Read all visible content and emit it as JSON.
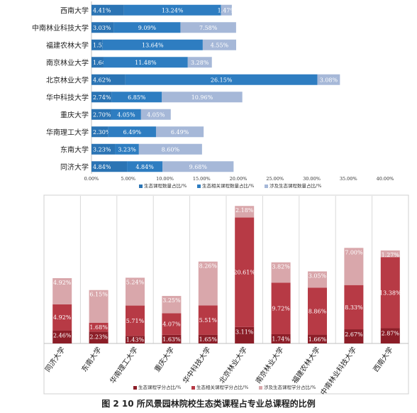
{
  "caption": "图 2   10 所风景园林院校生态类课程占专业总课程的比例",
  "chart_data": [
    {
      "type": "bar",
      "orientation": "horizontal",
      "stacked": true,
      "categories": [
        "西南大学",
        "中南林业科技大学",
        "福建农林大学",
        "南京林业大学",
        "北京林业大学",
        "华中科技大学",
        "重庆大学",
        "华南理工大学",
        "东南大学",
        "同济大学"
      ],
      "series": [
        {
          "name": "生态课程数量占比/%",
          "color": "#2b74b4",
          "values": [
            4.41,
            3.03,
            1.52,
            1.64,
            4.62,
            2.74,
            2.7,
            2.3,
            3.23,
            4.84
          ],
          "labels": [
            "4.41%",
            "3.03%",
            "1.52%",
            "1.64%",
            "4.62%",
            "2.74%",
            "2.70%",
            "2.30%",
            "3.23%",
            "4.84%"
          ]
        },
        {
          "name": "生态相关课程数量占比/%",
          "color": "#2e7dc1",
          "values": [
            13.24,
            9.09,
            13.64,
            11.48,
            26.15,
            6.85,
            4.05,
            6.49,
            3.23,
            4.84
          ],
          "labels": [
            "13.24%",
            "9.09%",
            "13.64%",
            "11.48%",
            "26.15%",
            "6.85%",
            "4.05%",
            "6.49%",
            "3.23%",
            "4.84%"
          ]
        },
        {
          "name": "涉及生态课程数量占比/%",
          "color": "#a6b8d8",
          "values": [
            1.47,
            7.58,
            4.55,
            3.28,
            3.08,
            10.96,
            4.05,
            6.49,
            8.6,
            9.68
          ],
          "labels": [
            "1.47%",
            "7.58%",
            "4.55%",
            "3.28%",
            "3.08%",
            "10.96%",
            "4.05%",
            "6.49%",
            "8.60%",
            "9.68%"
          ]
        }
      ],
      "xlim": [
        0,
        40
      ],
      "xticks": [
        "0.00%",
        "5.00%",
        "10.00%",
        "15.00%",
        "20.00%",
        "25.00%",
        "30.00%",
        "35.00%",
        "40.00%"
      ],
      "legend": "bottom"
    },
    {
      "type": "bar",
      "orientation": "vertical",
      "stacked": true,
      "categories": [
        "同济大学",
        "东南大学",
        "华南理工大学",
        "重庆大学",
        "华中科技大学",
        "北京林业大学",
        "南京林业大学",
        "福建农林大学",
        "中南林业科技大学",
        "西南大学"
      ],
      "series": [
        {
          "name": "生态课程学分占比/%",
          "color": "#8c1e28",
          "values": [
            2.46,
            2.23,
            1.43,
            1.63,
            1.65,
            3.11,
            1.74,
            1.66,
            2.67,
            2.87
          ],
          "labels": [
            "2.46%",
            "2.23%",
            "1.43%",
            "1.63%",
            "1.65%",
            "3.11%",
            "1.74%",
            "1.66%",
            "2.67%",
            "2.87%"
          ]
        },
        {
          "name": "生态相关课程学分占比/%",
          "color": "#b73a45",
          "values": [
            4.92,
            1.68,
            5.71,
            4.07,
            5.51,
            20.61,
            9.72,
            8.86,
            8.33,
            13.38
          ],
          "labels": [
            "4.92%",
            "1.68%",
            "5.71%",
            "4.07%",
            "5.51%",
            "20.61%",
            "9.72%",
            "8.86%",
            "8.33%",
            "13.38%"
          ]
        },
        {
          "name": "涉及生态课程学分占比/%",
          "color": "#d9a7ab",
          "values": [
            4.92,
            6.15,
            5.24,
            3.25,
            8.26,
            2.18,
            3.82,
            3.05,
            7.0,
            1.27
          ],
          "labels": [
            "4.92%",
            "6.15%",
            "5.24%",
            "3.25%",
            "8.26%",
            "2.18%",
            "3.82%",
            "3.05%",
            "7.00%",
            "1.27%"
          ]
        }
      ],
      "ylim": [
        0,
        27
      ],
      "grid": "vertical separators",
      "legend": "bottom"
    }
  ]
}
